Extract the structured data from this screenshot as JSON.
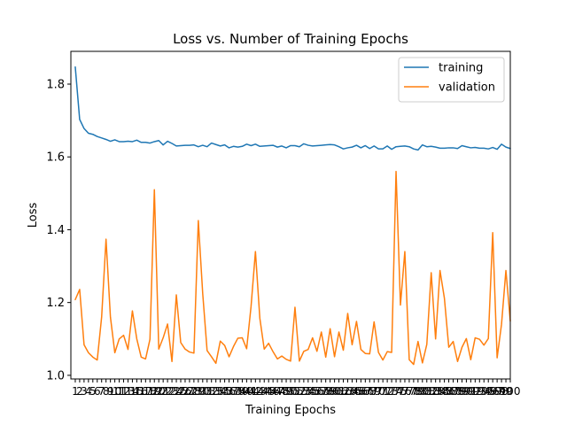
{
  "chart_data": {
    "type": "line",
    "title": "Loss vs. Number of Training Epochs",
    "xlabel": "Training Epochs",
    "ylabel": "Loss",
    "xlim": [
      0,
      100
    ],
    "ylim": [
      0.99,
      1.89
    ],
    "yticks": [
      1.0,
      1.2,
      1.4,
      1.6,
      1.8
    ],
    "xtick_labels": [
      "1",
      "2",
      "3",
      "4",
      "5",
      "6",
      "7",
      "8",
      "9",
      "10",
      "11",
      "12",
      "13",
      "14",
      "15",
      "16",
      "17",
      "18",
      "19",
      "20",
      "21",
      "22",
      "23",
      "24",
      "25",
      "26",
      "27",
      "28",
      "29",
      "30",
      "31",
      "32",
      "33",
      "34",
      "35",
      "36",
      "37",
      "38",
      "39",
      "40",
      "41",
      "42",
      "43",
      "44",
      "45",
      "46",
      "47",
      "48",
      "49",
      "50",
      "51",
      "52",
      "53",
      "54",
      "55",
      "56",
      "57",
      "58",
      "59",
      "60",
      "61",
      "62",
      "63",
      "64",
      "65",
      "66",
      "67",
      "68",
      "69",
      "70",
      "71",
      "72",
      "73",
      "74",
      "75",
      "76",
      "77",
      "78",
      "79",
      "80",
      "81",
      "82",
      "83",
      "84",
      "85",
      "86",
      "87",
      "88",
      "89",
      "90",
      "91",
      "92",
      "93",
      "94",
      "95",
      "96",
      "97",
      "98",
      "99",
      "100"
    ],
    "legend_position": "top-right",
    "grid": false,
    "series": [
      {
        "name": "training",
        "color": "#1f77b4",
        "values": [
          1.847,
          1.703,
          1.678,
          1.665,
          1.662,
          1.656,
          1.652,
          1.648,
          1.643,
          1.647,
          1.642,
          1.642,
          1.643,
          1.642,
          1.646,
          1.64,
          1.64,
          1.638,
          1.642,
          1.645,
          1.633,
          1.643,
          1.637,
          1.63,
          1.631,
          1.632,
          1.632,
          1.633,
          1.628,
          1.632,
          1.628,
          1.638,
          1.634,
          1.63,
          1.633,
          1.625,
          1.629,
          1.627,
          1.629,
          1.635,
          1.631,
          1.635,
          1.629,
          1.63,
          1.631,
          1.632,
          1.627,
          1.63,
          1.625,
          1.631,
          1.631,
          1.628,
          1.636,
          1.632,
          1.63,
          1.631,
          1.632,
          1.633,
          1.634,
          1.633,
          1.628,
          1.622,
          1.625,
          1.627,
          1.632,
          1.625,
          1.631,
          1.623,
          1.63,
          1.622,
          1.622,
          1.63,
          1.621,
          1.628,
          1.629,
          1.63,
          1.628,
          1.622,
          1.619,
          1.633,
          1.628,
          1.629,
          1.627,
          1.624,
          1.624,
          1.625,
          1.625,
          1.623,
          1.631,
          1.628,
          1.625,
          1.626,
          1.624,
          1.624,
          1.622,
          1.626,
          1.621,
          1.635,
          1.627,
          1.623
        ]
      },
      {
        "name": "validation",
        "color": "#ff7f0e",
        "values": [
          1.208,
          1.236,
          1.084,
          1.062,
          1.05,
          1.042,
          1.16,
          1.374,
          1.16,
          1.062,
          1.1,
          1.11,
          1.071,
          1.177,
          1.1,
          1.05,
          1.045,
          1.099,
          1.51,
          1.072,
          1.103,
          1.141,
          1.038,
          1.221,
          1.09,
          1.072,
          1.064,
          1.061,
          1.425,
          1.225,
          1.068,
          1.051,
          1.033,
          1.094,
          1.082,
          1.051,
          1.079,
          1.102,
          1.103,
          1.073,
          1.189,
          1.34,
          1.157,
          1.072,
          1.088,
          1.065,
          1.045,
          1.053,
          1.044,
          1.039,
          1.187,
          1.039,
          1.066,
          1.071,
          1.103,
          1.066,
          1.119,
          1.05,
          1.128,
          1.051,
          1.119,
          1.069,
          1.17,
          1.084,
          1.148,
          1.071,
          1.06,
          1.059,
          1.147,
          1.063,
          1.042,
          1.065,
          1.063,
          1.56,
          1.193,
          1.34,
          1.043,
          1.03,
          1.093,
          1.034,
          1.085,
          1.282,
          1.1,
          1.288,
          1.212,
          1.077,
          1.093,
          1.038,
          1.077,
          1.101,
          1.043,
          1.103,
          1.099,
          1.083,
          1.101,
          1.392,
          1.048,
          1.14,
          1.288,
          1.149
        ]
      }
    ]
  }
}
